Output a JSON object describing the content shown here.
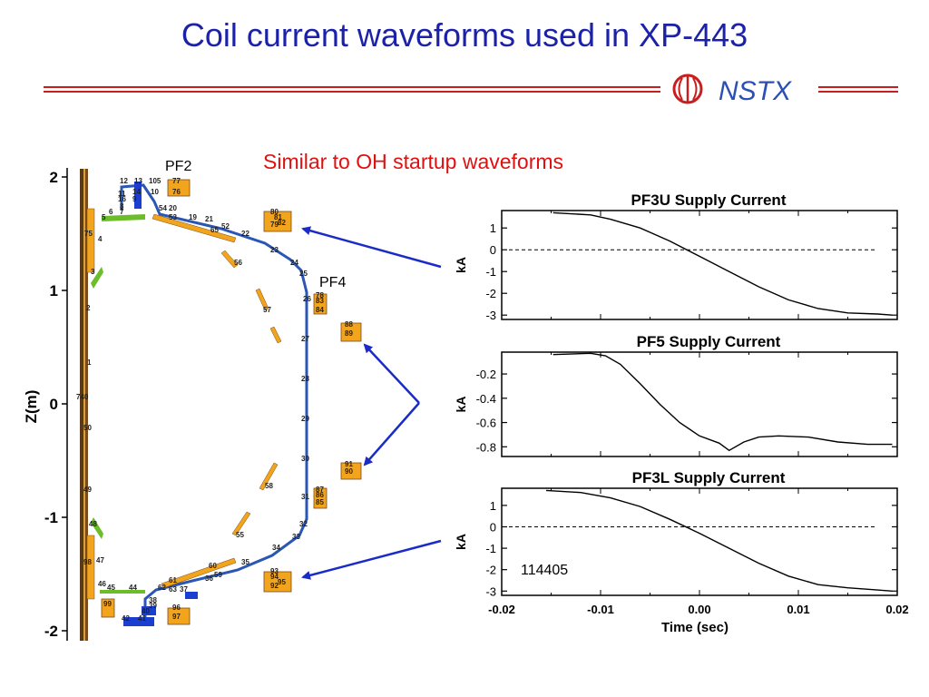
{
  "slide": {
    "title": "Coil current waveforms used in XP-443",
    "subtitle": "Similar to OH startup waveforms",
    "logo_text": "NSTX",
    "shot_label": "114405"
  },
  "colors": {
    "title": "#1c22a8",
    "subtitle": "#e01010",
    "rule": "#c81e1e",
    "vessel": "#2a56b4",
    "coil": "#f2a51c",
    "plate_green": "#6bbd2a",
    "plate_blue": "#1a3fd0",
    "arrow": "#1a2bc8"
  },
  "cross_section": {
    "ylabel": "Z(m)",
    "yticks": [
      "2",
      "1",
      "0",
      "-1",
      "-2"
    ],
    "coil_labels": {
      "pf2": "PF2",
      "pf4": "PF4"
    },
    "numbers": [
      "12",
      "13",
      "105",
      "77",
      "76",
      "11",
      "14",
      "10",
      "16",
      "9",
      "8",
      "7",
      "6",
      "5",
      "54",
      "20",
      "53",
      "19",
      "21",
      "52",
      "65",
      "22",
      "75",
      "4",
      "3",
      "2",
      "1",
      "74",
      "0",
      "50",
      "49",
      "48",
      "47",
      "98",
      "46",
      "45",
      "44",
      "61",
      "62",
      "63",
      "37",
      "36",
      "60",
      "59",
      "35",
      "56",
      "57",
      "58",
      "55",
      "27",
      "28",
      "29",
      "30",
      "31",
      "32",
      "33",
      "34",
      "23",
      "24",
      "25",
      "26",
      "80",
      "81",
      "82",
      "79",
      "78",
      "83",
      "84",
      "88",
      "89",
      "91",
      "90",
      "87",
      "86",
      "85",
      "93",
      "94",
      "95",
      "92",
      "99",
      "96",
      "97",
      "38",
      "39",
      "40",
      "41",
      "42",
      "43"
    ]
  },
  "chart_data": [
    {
      "type": "line",
      "title": "PF3U Supply Current",
      "ylabel": "kA",
      "xlim": [
        -0.02,
        0.02
      ],
      "ylim": [
        -3.2,
        1.8
      ],
      "yticks": [
        1,
        0,
        -1,
        -2,
        -3
      ],
      "ytick_labels": [
        "1",
        "0",
        "-1",
        "-2",
        "-3"
      ],
      "reference_line": 0,
      "series": [
        {
          "x": [
            -0.0148,
            -0.011,
            -0.009,
            -0.006,
            -0.003,
            0.0,
            0.003,
            0.006,
            0.009,
            0.012,
            0.015,
            0.018,
            0.0195
          ],
          "y": [
            1.7,
            1.6,
            1.4,
            1.0,
            0.4,
            -0.3,
            -1.0,
            -1.7,
            -2.3,
            -2.7,
            -2.9,
            -2.95,
            -3.0
          ]
        }
      ]
    },
    {
      "type": "line",
      "title": "PF5 Supply Current",
      "ylabel": "kA",
      "xlim": [
        -0.02,
        0.02
      ],
      "ylim": [
        -0.88,
        -0.02
      ],
      "yticks": [
        -0.2,
        -0.4,
        -0.6,
        -0.8
      ],
      "ytick_labels": [
        "-0.2",
        "-0.4",
        "-0.6",
        "-0.8"
      ],
      "series": [
        {
          "x": [
            -0.0148,
            -0.011,
            -0.0095,
            -0.008,
            -0.006,
            -0.004,
            -0.002,
            0.0,
            0.002,
            0.003,
            0.0045,
            0.006,
            0.008,
            0.011,
            0.014,
            0.017,
            0.0195
          ],
          "y": [
            -0.04,
            -0.03,
            -0.05,
            -0.12,
            -0.28,
            -0.45,
            -0.6,
            -0.71,
            -0.77,
            -0.83,
            -0.76,
            -0.72,
            -0.71,
            -0.72,
            -0.76,
            -0.78,
            -0.78
          ]
        }
      ]
    },
    {
      "type": "line",
      "title": "PF3L Supply Current",
      "ylabel": "kA",
      "xlabel": "Time (sec)",
      "xlim": [
        -0.02,
        0.02
      ],
      "xticks": [
        -0.02,
        -0.01,
        0.0,
        0.01,
        0.02
      ],
      "xtick_labels": [
        "-0.02",
        "-0.01",
        "0.00",
        "0.01",
        "0.02"
      ],
      "ylim": [
        -3.2,
        1.8
      ],
      "yticks": [
        1,
        0,
        -1,
        -2,
        -3
      ],
      "ytick_labels": [
        "1",
        "0",
        "-1",
        "-2",
        "-3"
      ],
      "reference_line": 0,
      "series": [
        {
          "x": [
            -0.0155,
            -0.012,
            -0.009,
            -0.006,
            -0.003,
            0.0,
            0.003,
            0.006,
            0.009,
            0.012,
            0.015,
            0.018,
            0.0195
          ],
          "y": [
            1.7,
            1.6,
            1.35,
            0.95,
            0.35,
            -0.3,
            -1.0,
            -1.7,
            -2.3,
            -2.7,
            -2.85,
            -2.95,
            -3.0
          ]
        }
      ]
    }
  ]
}
